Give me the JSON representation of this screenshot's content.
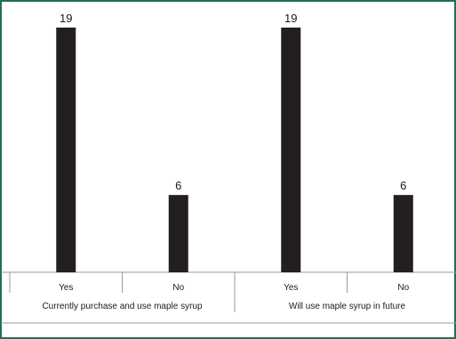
{
  "colors": {
    "frame": "#1f6f5c",
    "bar": "#231f20",
    "grid": "#9a9a9a",
    "text": "#1a1a1a",
    "background": "#ffffff"
  },
  "chart_data": {
    "type": "bar",
    "title": "",
    "xlabel": "",
    "ylabel": "",
    "ylim": [
      0,
      20
    ],
    "grid": false,
    "legend": "none",
    "groups": [
      {
        "label": "Currently purchase and use maple syrup",
        "categories": [
          "Yes",
          "No"
        ],
        "values": [
          19,
          6
        ]
      },
      {
        "label": "Will use maple syrup in future",
        "categories": [
          "Yes",
          "No"
        ],
        "values": [
          19,
          6
        ]
      }
    ],
    "data_labels": [
      "19",
      "6",
      "19",
      "6"
    ]
  }
}
